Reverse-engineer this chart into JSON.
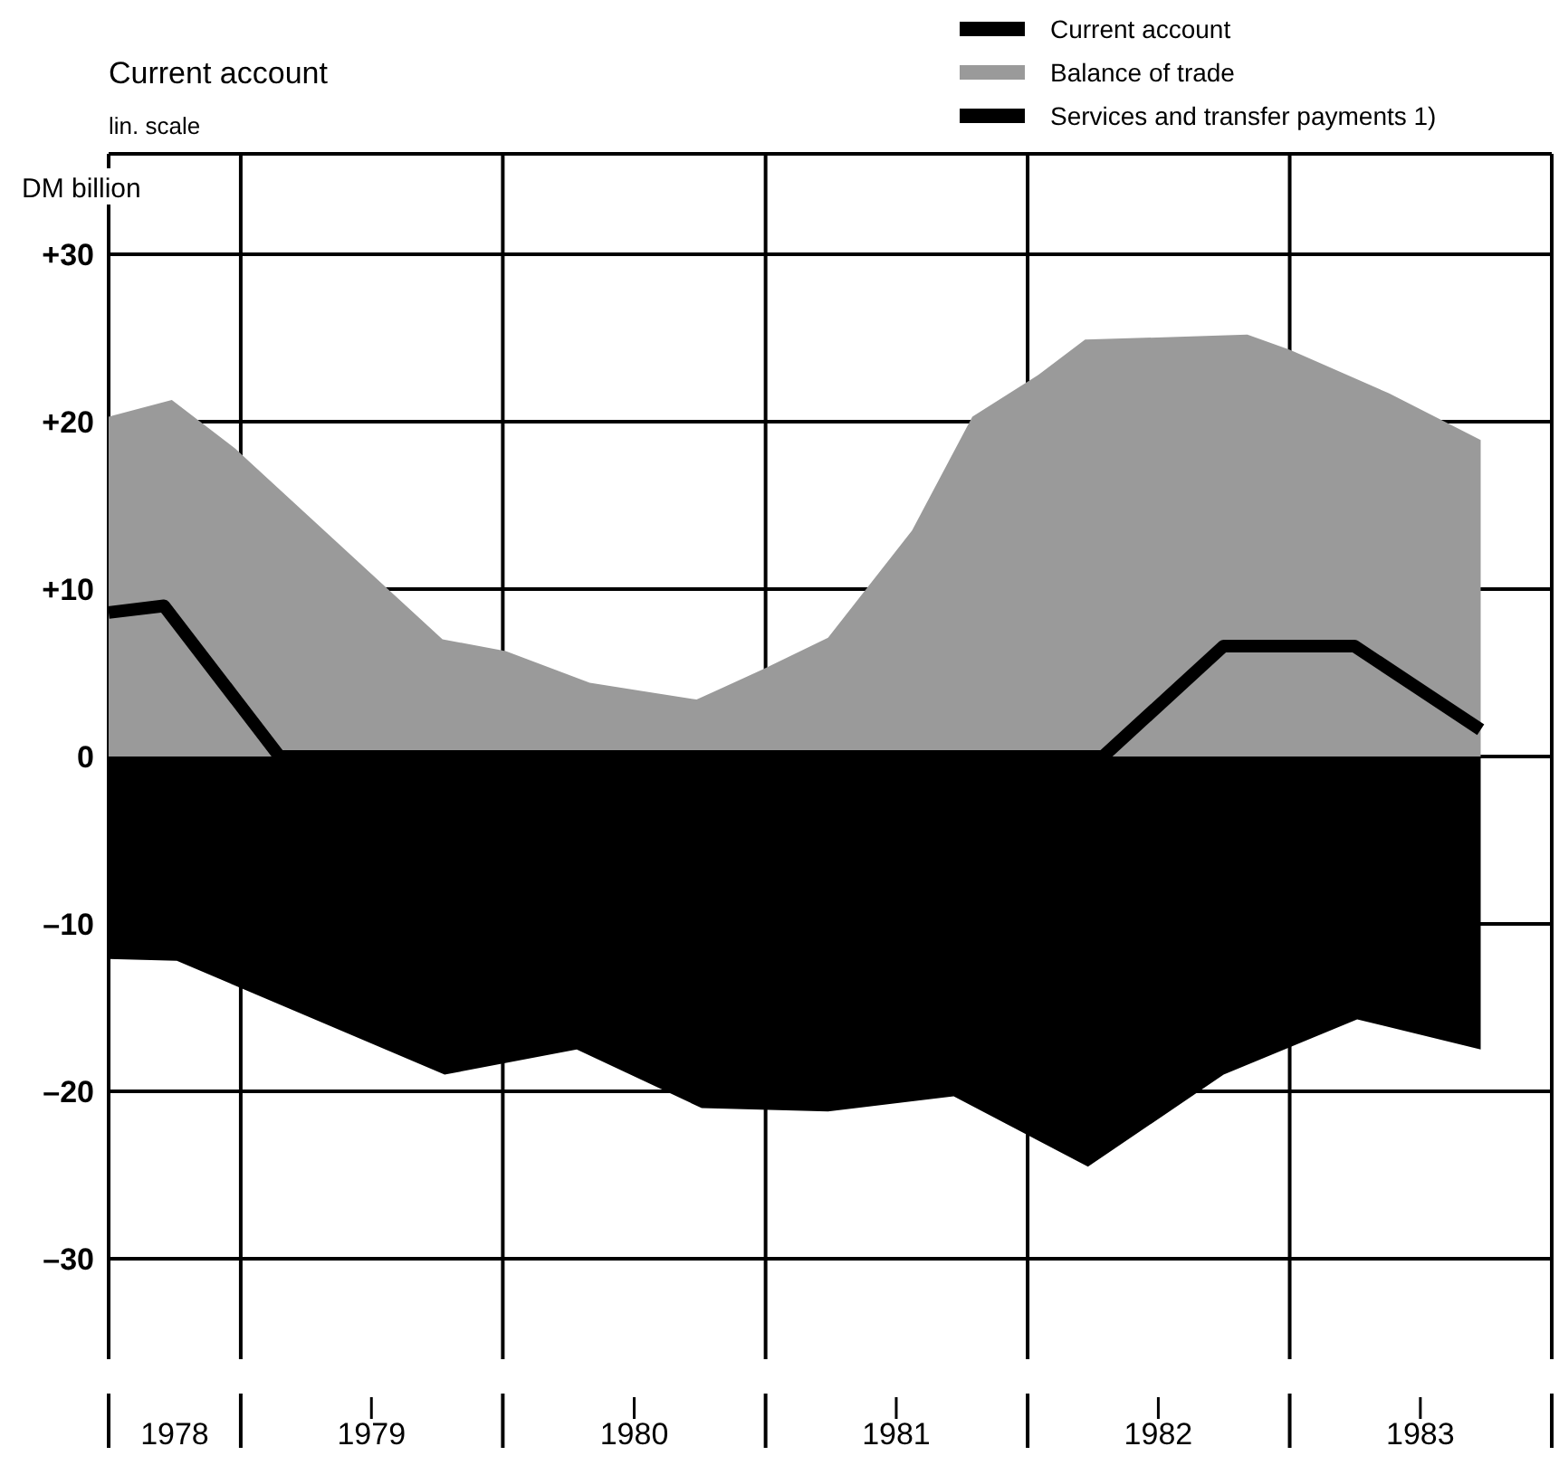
{
  "chart_data": {
    "type": "area",
    "title": "Current account",
    "subtitle": "lin. scale",
    "ylabel": "DM billion",
    "xlim": [
      "1978-07-01",
      "1984-01-01"
    ],
    "xticks": [
      {
        "value": "1978-07-01",
        "label": null
      },
      {
        "value": "1978-10-01",
        "label": "1978"
      },
      {
        "value": "1979-01-01",
        "label": null
      },
      {
        "value": "1979-07-02",
        "label": "1979"
      },
      {
        "value": "1980-01-01",
        "label": null
      },
      {
        "value": "1980-07-02",
        "label": "1980"
      },
      {
        "value": "1981-01-01",
        "label": null
      },
      {
        "value": "1981-07-02",
        "label": "1981"
      },
      {
        "value": "1982-01-01",
        "label": null
      },
      {
        "value": "1982-07-02",
        "label": "1982"
      },
      {
        "value": "1983-01-01",
        "label": null
      },
      {
        "value": "1983-07-02",
        "label": "1983"
      },
      {
        "value": "1984-01-01",
        "label": null
      }
    ],
    "ylim": [
      -36,
      36
    ],
    "yticks": [
      {
        "value": 30,
        "label": "+30"
      },
      {
        "value": 20,
        "label": "+20"
      },
      {
        "value": 10,
        "label": "+10"
      },
      0,
      {
        "value": -10,
        "label": "–10"
      },
      {
        "value": -20,
        "label": "–20"
      },
      {
        "value": -30,
        "label": "–30"
      }
    ],
    "grid": true,
    "legend": "top right",
    "series": [
      {
        "name": "Current account",
        "type": "line",
        "color": "#000000",
        "x": [
          "1978-07-01",
          "1978-09-16",
          "1979-02-24",
          "1982-04-16",
          "1982-10-01",
          "1983-04-01",
          "1983-09-24"
        ],
        "values": [
          8.6,
          9.0,
          0,
          0,
          6.6,
          6.6,
          1.6
        ]
      },
      {
        "name": "Balance of trade",
        "color": "#9a9a9a",
        "x": [
          "1978-07-01",
          "1978-09-27",
          "1978-12-24",
          "1979-10-09",
          "1980-01-05",
          "1980-05-01",
          "1980-09-27",
          "1980-12-28",
          "1981-03-29",
          "1981-07-24",
          "1981-10-16",
          "1982-01-16",
          "1982-03-22",
          "1982-11-03",
          "1983-01-01",
          "1983-05-19",
          "1983-09-24"
        ],
        "values": [
          20.3,
          21.3,
          18.4,
          7.0,
          6.3,
          4.4,
          3.4,
          5.2,
          7.1,
          13.5,
          20.3,
          22.8,
          24.9,
          25.2,
          24.3,
          21.7,
          18.9
        ]
      },
      {
        "name": "Services and transfer payments 1)",
        "color": "#000000",
        "x": [
          "1978-07-01",
          "1978-10-04",
          "1979-10-12",
          "1980-04-13",
          "1980-10-04",
          "1981-03-29",
          "1981-09-20",
          "1982-03-26",
          "1982-10-01",
          "1983-04-05",
          "1983-09-24"
        ],
        "values": [
          -12.1,
          -12.2,
          -19.0,
          -17.5,
          -21.0,
          -21.2,
          -20.3,
          -24.5,
          -19.0,
          -15.7,
          -17.5
        ]
      }
    ]
  }
}
